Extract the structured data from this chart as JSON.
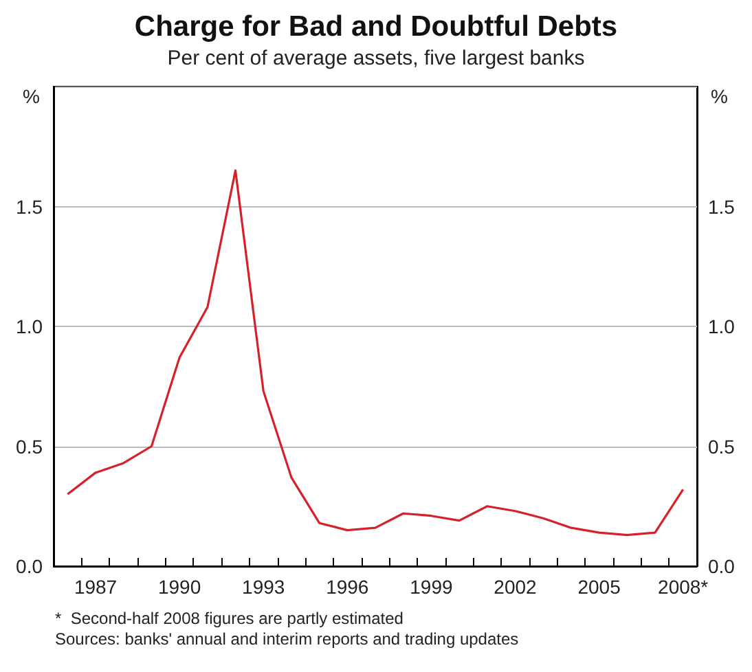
{
  "chart_data": {
    "type": "line",
    "title": "Charge for Bad and Doubtful Debts",
    "subtitle": "Per cent of average assets, five largest banks",
    "ylabel": "%",
    "y2label": "%",
    "categories": [
      null,
      "1987",
      null,
      null,
      "1990",
      null,
      null,
      "1993",
      null,
      null,
      "1996",
      null,
      null,
      "1999",
      null,
      null,
      "2002",
      null,
      null,
      "2005",
      null,
      null,
      "2008*"
    ],
    "series": [
      {
        "color": "#d7212a",
        "values": [
          0.3,
          0.39,
          0.43,
          0.5,
          0.87,
          1.08,
          1.65,
          0.73,
          0.37,
          0.18,
          0.15,
          0.16,
          0.22,
          0.21,
          0.19,
          0.25,
          0.23,
          0.2,
          0.16,
          0.14,
          0.13,
          0.14,
          0.32
        ]
      }
    ],
    "ylim": [
      0,
      2
    ],
    "yticks": [
      {
        "value": 0,
        "label": "0.0"
      },
      0.5,
      {
        "value": 1,
        "label": "1.0"
      },
      1.5
    ],
    "y2lim": [
      0,
      2
    ],
    "y2ticks": [
      {
        "value": 0,
        "label": "0.0"
      },
      0.5,
      {
        "value": 1,
        "label": "1.0"
      },
      1.5
    ],
    "grid": "y",
    "marker": "none",
    "line_style": "solid",
    "annotations": [
      "*  Second-half 2008 figures are partly estimated",
      "Sources: banks' annual and interim reports and trading updates"
    ]
  }
}
